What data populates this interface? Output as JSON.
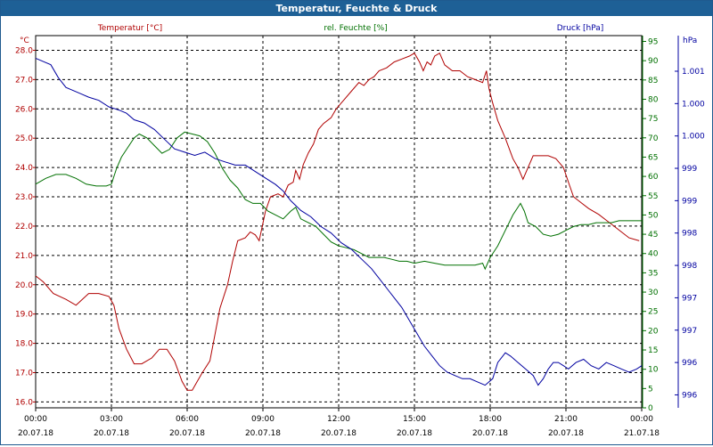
{
  "window": {
    "title": "Temperatur, Feuchte & Druck"
  },
  "colors": {
    "temperature": "#b00000",
    "humidity": "#007000",
    "pressure": "#0000a0",
    "grid": "#000000"
  },
  "chart_data": {
    "type": "line",
    "title": "Temperatur, Feuchte & Druck",
    "x_hours": [
      0,
      24
    ],
    "x_ticks": [
      {
        "time": "00:00",
        "date": "20.07.18",
        "h": 0
      },
      {
        "time": "03:00",
        "date": "20.07.18",
        "h": 3
      },
      {
        "time": "06:00",
        "date": "20.07.18",
        "h": 6
      },
      {
        "time": "09:00",
        "date": "20.07.18",
        "h": 9
      },
      {
        "time": "12:00",
        "date": "20.07.18",
        "h": 12
      },
      {
        "time": "15:00",
        "date": "20.07.18",
        "h": 15
      },
      {
        "time": "18:00",
        "date": "20.07.18",
        "h": 18
      },
      {
        "time": "21:00",
        "date": "20.07.18",
        "h": 21
      },
      {
        "time": "00:00",
        "date": "21.07.18",
        "h": 24
      }
    ],
    "axes": {
      "temperature": {
        "label": "Temperatur [°C]",
        "unit": "°C",
        "range": [
          15.8,
          28.5
        ],
        "ticks": [
          "16.0",
          "17.0",
          "18.0",
          "19.0",
          "20.0",
          "21.0",
          "22.0",
          "23.0",
          "24.0",
          "25.0",
          "26.0",
          "27.0",
          "28.0"
        ]
      },
      "humidity": {
        "label": "rel. Feuchte [%]",
        "unit": "%",
        "range": [
          0,
          96.5
        ],
        "ticks": [
          "0",
          "5",
          "10",
          "15",
          "20",
          "25",
          "30",
          "35",
          "40",
          "45",
          "50",
          "55",
          "60",
          "65",
          "70",
          "75",
          "80",
          "85",
          "90",
          "95"
        ]
      },
      "pressure": {
        "label": "Druck [hPa]",
        "unit": "hPa",
        "range": [
          995.6,
          1001.35
        ],
        "ticks": [
          {
            "label": "996",
            "v": 995.8
          },
          {
            "label": "996",
            "v": 996.3
          },
          {
            "label": "997",
            "v": 996.8
          },
          {
            "label": "997",
            "v": 997.3
          },
          {
            "label": "998",
            "v": 997.8
          },
          {
            "label": "998",
            "v": 998.3
          },
          {
            "label": "999",
            "v": 998.8
          },
          {
            "label": "999",
            "v": 999.3
          },
          {
            "label": "1.000",
            "v": 999.8
          },
          {
            "label": "1.000",
            "v": 1000.3
          },
          {
            "label": "1.001",
            "v": 1000.8
          }
        ]
      }
    },
    "series": [
      {
        "name": "Temperatur",
        "axis": "temperature",
        "points": [
          [
            0,
            20.3
          ],
          [
            0.3,
            20.1
          ],
          [
            0.7,
            19.7
          ],
          [
            1.2,
            19.5
          ],
          [
            1.6,
            19.3
          ],
          [
            2.1,
            19.7
          ],
          [
            2.5,
            19.7
          ],
          [
            2.9,
            19.6
          ],
          [
            3.1,
            19.3
          ],
          [
            3.3,
            18.5
          ],
          [
            3.6,
            17.8
          ],
          [
            3.9,
            17.3
          ],
          [
            4.2,
            17.3
          ],
          [
            4.6,
            17.5
          ],
          [
            4.9,
            17.8
          ],
          [
            5.2,
            17.8
          ],
          [
            5.5,
            17.4
          ],
          [
            5.8,
            16.7
          ],
          [
            6.0,
            16.4
          ],
          [
            6.2,
            16.4
          ],
          [
            6.4,
            16.7
          ],
          [
            6.6,
            17.0
          ],
          [
            6.9,
            17.4
          ],
          [
            7.1,
            18.3
          ],
          [
            7.3,
            19.2
          ],
          [
            7.6,
            20.0
          ],
          [
            7.8,
            20.8
          ],
          [
            8.0,
            21.5
          ],
          [
            8.3,
            21.6
          ],
          [
            8.5,
            21.8
          ],
          [
            8.7,
            21.7
          ],
          [
            8.85,
            21.5
          ],
          [
            9.0,
            22.1
          ],
          [
            9.1,
            22.5
          ],
          [
            9.3,
            23.0
          ],
          [
            9.6,
            23.1
          ],
          [
            9.8,
            23.0
          ],
          [
            10.0,
            23.4
          ],
          [
            10.2,
            23.5
          ],
          [
            10.3,
            23.9
          ],
          [
            10.45,
            23.6
          ],
          [
            10.6,
            24.1
          ],
          [
            10.8,
            24.5
          ],
          [
            11.0,
            24.8
          ],
          [
            11.2,
            25.3
          ],
          [
            11.4,
            25.5
          ],
          [
            11.7,
            25.7
          ],
          [
            11.9,
            26.0
          ],
          [
            12.2,
            26.3
          ],
          [
            12.5,
            26.6
          ],
          [
            12.8,
            26.9
          ],
          [
            13.0,
            26.8
          ],
          [
            13.2,
            27.0
          ],
          [
            13.4,
            27.1
          ],
          [
            13.6,
            27.3
          ],
          [
            13.9,
            27.4
          ],
          [
            14.2,
            27.6
          ],
          [
            14.5,
            27.7
          ],
          [
            14.8,
            27.8
          ],
          [
            15.0,
            27.9
          ],
          [
            15.2,
            27.6
          ],
          [
            15.35,
            27.3
          ],
          [
            15.5,
            27.6
          ],
          [
            15.65,
            27.5
          ],
          [
            15.8,
            27.8
          ],
          [
            16.0,
            27.9
          ],
          [
            16.2,
            27.5
          ],
          [
            16.5,
            27.3
          ],
          [
            16.8,
            27.3
          ],
          [
            17.1,
            27.1
          ],
          [
            17.4,
            27.0
          ],
          [
            17.7,
            26.9
          ],
          [
            17.85,
            27.3
          ],
          [
            17.95,
            26.7
          ],
          [
            18.1,
            26.2
          ],
          [
            18.3,
            25.6
          ],
          [
            18.6,
            25.0
          ],
          [
            18.9,
            24.3
          ],
          [
            19.1,
            24.0
          ],
          [
            19.3,
            23.6
          ],
          [
            19.5,
            24.0
          ],
          [
            19.7,
            24.4
          ],
          [
            20.0,
            24.4
          ],
          [
            20.3,
            24.4
          ],
          [
            20.6,
            24.3
          ],
          [
            20.9,
            24.0
          ],
          [
            21.1,
            23.5
          ],
          [
            21.3,
            23.0
          ],
          [
            21.6,
            22.8
          ],
          [
            21.9,
            22.6
          ],
          [
            22.3,
            22.4
          ],
          [
            22.6,
            22.2
          ],
          [
            22.9,
            22.0
          ],
          [
            23.2,
            21.8
          ],
          [
            23.5,
            21.6
          ],
          [
            23.9,
            21.5
          ]
        ]
      },
      {
        "name": "rel. Feuchte",
        "axis": "humidity",
        "points": [
          [
            0,
            58
          ],
          [
            0.4,
            59.5
          ],
          [
            0.8,
            60.5
          ],
          [
            1.2,
            60.5
          ],
          [
            1.6,
            59.5
          ],
          [
            2.0,
            58
          ],
          [
            2.4,
            57.5
          ],
          [
            2.8,
            57.5
          ],
          [
            3.0,
            58
          ],
          [
            3.2,
            62
          ],
          [
            3.4,
            65
          ],
          [
            3.7,
            68
          ],
          [
            3.9,
            70
          ],
          [
            4.1,
            71
          ],
          [
            4.4,
            70
          ],
          [
            4.7,
            68
          ],
          [
            5.0,
            66
          ],
          [
            5.3,
            67
          ],
          [
            5.6,
            70
          ],
          [
            5.9,
            71.5
          ],
          [
            6.2,
            71
          ],
          [
            6.5,
            70.5
          ],
          [
            6.8,
            69
          ],
          [
            7.1,
            66
          ],
          [
            7.4,
            62
          ],
          [
            7.7,
            59
          ],
          [
            8.0,
            57
          ],
          [
            8.3,
            54
          ],
          [
            8.6,
            53
          ],
          [
            8.9,
            53
          ],
          [
            9.2,
            51
          ],
          [
            9.5,
            50
          ],
          [
            9.8,
            49
          ],
          [
            10.1,
            51
          ],
          [
            10.3,
            52
          ],
          [
            10.5,
            49
          ],
          [
            10.8,
            48
          ],
          [
            11.1,
            47
          ],
          [
            11.4,
            45
          ],
          [
            11.7,
            43
          ],
          [
            12.0,
            42
          ],
          [
            12.3,
            41.5
          ],
          [
            12.6,
            41
          ],
          [
            12.9,
            40
          ],
          [
            13.2,
            39
          ],
          [
            13.5,
            39
          ],
          [
            13.8,
            39
          ],
          [
            14.1,
            38.5
          ],
          [
            14.4,
            38
          ],
          [
            14.7,
            38
          ],
          [
            15.0,
            37.5
          ],
          [
            15.4,
            38
          ],
          [
            15.8,
            37.5
          ],
          [
            16.2,
            37
          ],
          [
            16.6,
            37
          ],
          [
            17.0,
            37
          ],
          [
            17.4,
            37
          ],
          [
            17.7,
            37.5
          ],
          [
            17.8,
            36
          ],
          [
            18.0,
            39
          ],
          [
            18.3,
            42
          ],
          [
            18.6,
            46
          ],
          [
            18.9,
            50
          ],
          [
            19.2,
            53
          ],
          [
            19.35,
            51
          ],
          [
            19.5,
            48
          ],
          [
            19.8,
            47
          ],
          [
            20.1,
            45
          ],
          [
            20.4,
            44.5
          ],
          [
            20.7,
            45
          ],
          [
            21.0,
            46
          ],
          [
            21.3,
            47
          ],
          [
            21.6,
            47.5
          ],
          [
            21.9,
            47.5
          ],
          [
            22.2,
            48
          ],
          [
            22.5,
            48
          ],
          [
            22.8,
            48
          ],
          [
            23.1,
            48.5
          ],
          [
            23.4,
            48.5
          ],
          [
            23.7,
            48.5
          ],
          [
            24.0,
            48.5
          ]
        ]
      },
      {
        "name": "Druck",
        "axis": "pressure",
        "points": [
          [
            0,
            1001.0
          ],
          [
            0.3,
            1000.95
          ],
          [
            0.6,
            1000.9
          ],
          [
            0.9,
            1000.7
          ],
          [
            1.2,
            1000.55
          ],
          [
            1.5,
            1000.5
          ],
          [
            1.8,
            1000.45
          ],
          [
            2.1,
            1000.4
          ],
          [
            2.5,
            1000.35
          ],
          [
            2.9,
            1000.25
          ],
          [
            3.3,
            1000.2
          ],
          [
            3.6,
            1000.15
          ],
          [
            3.9,
            1000.05
          ],
          [
            4.3,
            1000.0
          ],
          [
            4.7,
            999.9
          ],
          [
            5.1,
            999.75
          ],
          [
            5.5,
            999.6
          ],
          [
            5.9,
            999.55
          ],
          [
            6.3,
            999.5
          ],
          [
            6.7,
            999.55
          ],
          [
            7.1,
            999.45
          ],
          [
            7.5,
            999.4
          ],
          [
            7.9,
            999.35
          ],
          [
            8.3,
            999.35
          ],
          [
            8.7,
            999.25
          ],
          [
            9.1,
            999.15
          ],
          [
            9.5,
            999.05
          ],
          [
            9.8,
            998.95
          ],
          [
            10.1,
            998.8
          ],
          [
            10.5,
            998.65
          ],
          [
            10.9,
            998.55
          ],
          [
            11.3,
            998.4
          ],
          [
            11.7,
            998.3
          ],
          [
            12.1,
            998.15
          ],
          [
            12.5,
            998.05
          ],
          [
            12.9,
            997.9
          ],
          [
            13.3,
            997.75
          ],
          [
            13.6,
            997.6
          ],
          [
            13.9,
            997.45
          ],
          [
            14.2,
            997.3
          ],
          [
            14.5,
            997.15
          ],
          [
            14.8,
            996.95
          ],
          [
            15.1,
            996.75
          ],
          [
            15.4,
            996.55
          ],
          [
            15.7,
            996.4
          ],
          [
            16.0,
            996.25
          ],
          [
            16.3,
            996.15
          ],
          [
            16.6,
            996.1
          ],
          [
            16.9,
            996.05
          ],
          [
            17.2,
            996.05
          ],
          [
            17.5,
            996.0
          ],
          [
            17.8,
            995.95
          ],
          [
            18.1,
            996.05
          ],
          [
            18.3,
            996.3
          ],
          [
            18.6,
            996.45
          ],
          [
            18.8,
            996.4
          ],
          [
            19.1,
            996.3
          ],
          [
            19.4,
            996.2
          ],
          [
            19.7,
            996.1
          ],
          [
            19.9,
            995.95
          ],
          [
            20.1,
            996.05
          ],
          [
            20.3,
            996.2
          ],
          [
            20.5,
            996.3
          ],
          [
            20.7,
            996.3
          ],
          [
            20.9,
            996.25
          ],
          [
            21.1,
            996.2
          ],
          [
            21.4,
            996.3
          ],
          [
            21.7,
            996.35
          ],
          [
            22.0,
            996.25
          ],
          [
            22.3,
            996.2
          ],
          [
            22.6,
            996.3
          ],
          [
            22.9,
            996.25
          ],
          [
            23.2,
            996.2
          ],
          [
            23.5,
            996.15
          ],
          [
            23.8,
            996.2
          ],
          [
            24.0,
            996.25
          ]
        ]
      }
    ]
  }
}
